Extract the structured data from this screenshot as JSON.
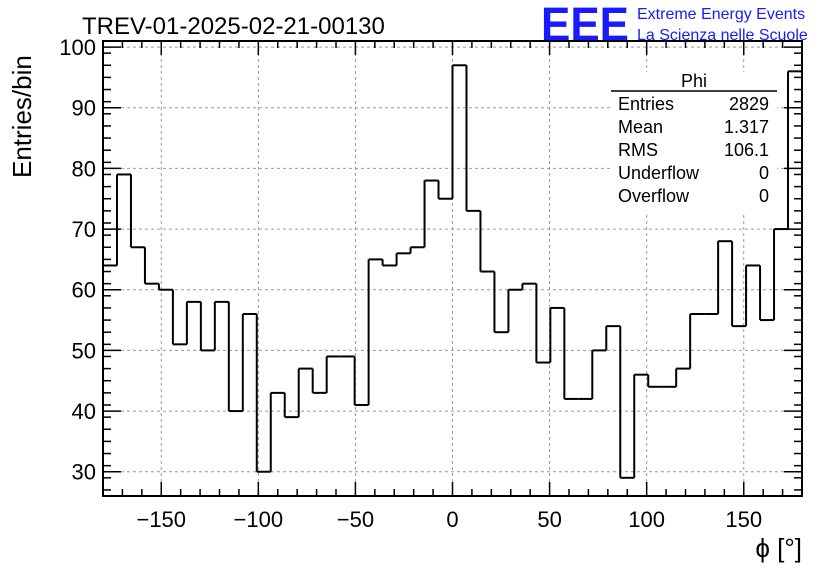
{
  "header": {
    "title": "TREV-01-2025-02-21-00130",
    "logo_text": "EEE",
    "logo_line1": "Extreme Energy Events",
    "logo_line2": "La Scienza nelle Scuole"
  },
  "stats_box": {
    "title": "Phi",
    "rows": [
      {
        "label": "Entries",
        "value": "2829"
      },
      {
        "label": "Mean",
        "value": "1.317"
      },
      {
        "label": "RMS",
        "value": "106.1"
      },
      {
        "label": "Underflow",
        "value": "0"
      },
      {
        "label": "Overflow",
        "value": "0"
      }
    ]
  },
  "chart_data": {
    "type": "histogram",
    "title": "TREV-01-2025-02-21-00130",
    "xlabel": "ϕ [°]",
    "ylabel": "Entries/bin",
    "xlim": [
      -180,
      180
    ],
    "ylim": [
      26,
      101
    ],
    "bin_width": 7.2,
    "bin_edges_start": -180,
    "values": [
      64,
      79,
      67,
      61,
      60,
      51,
      58,
      50,
      58,
      40,
      56,
      30,
      43,
      39,
      47,
      43,
      49,
      49,
      41,
      65,
      64,
      66,
      67,
      78,
      75,
      97,
      73,
      63,
      53,
      60,
      61,
      48,
      57,
      42,
      42,
      50,
      54,
      29,
      46,
      44,
      44,
      47,
      56,
      56,
      68,
      54,
      64,
      55,
      70,
      96
    ],
    "x_ticks": [
      -150,
      -100,
      -50,
      0,
      50,
      100,
      150
    ],
    "x_tick_labels": [
      "−150",
      "−100",
      "−50",
      "0",
      "50",
      "100",
      "150"
    ],
    "y_ticks": [
      30,
      40,
      50,
      60,
      70,
      80,
      90,
      100
    ],
    "y_tick_labels": [
      "30",
      "40",
      "50",
      "60",
      "70",
      "80",
      "90",
      "100"
    ],
    "grid": true,
    "line_color": "#000000",
    "grid_color": "#9a9a9a"
  }
}
